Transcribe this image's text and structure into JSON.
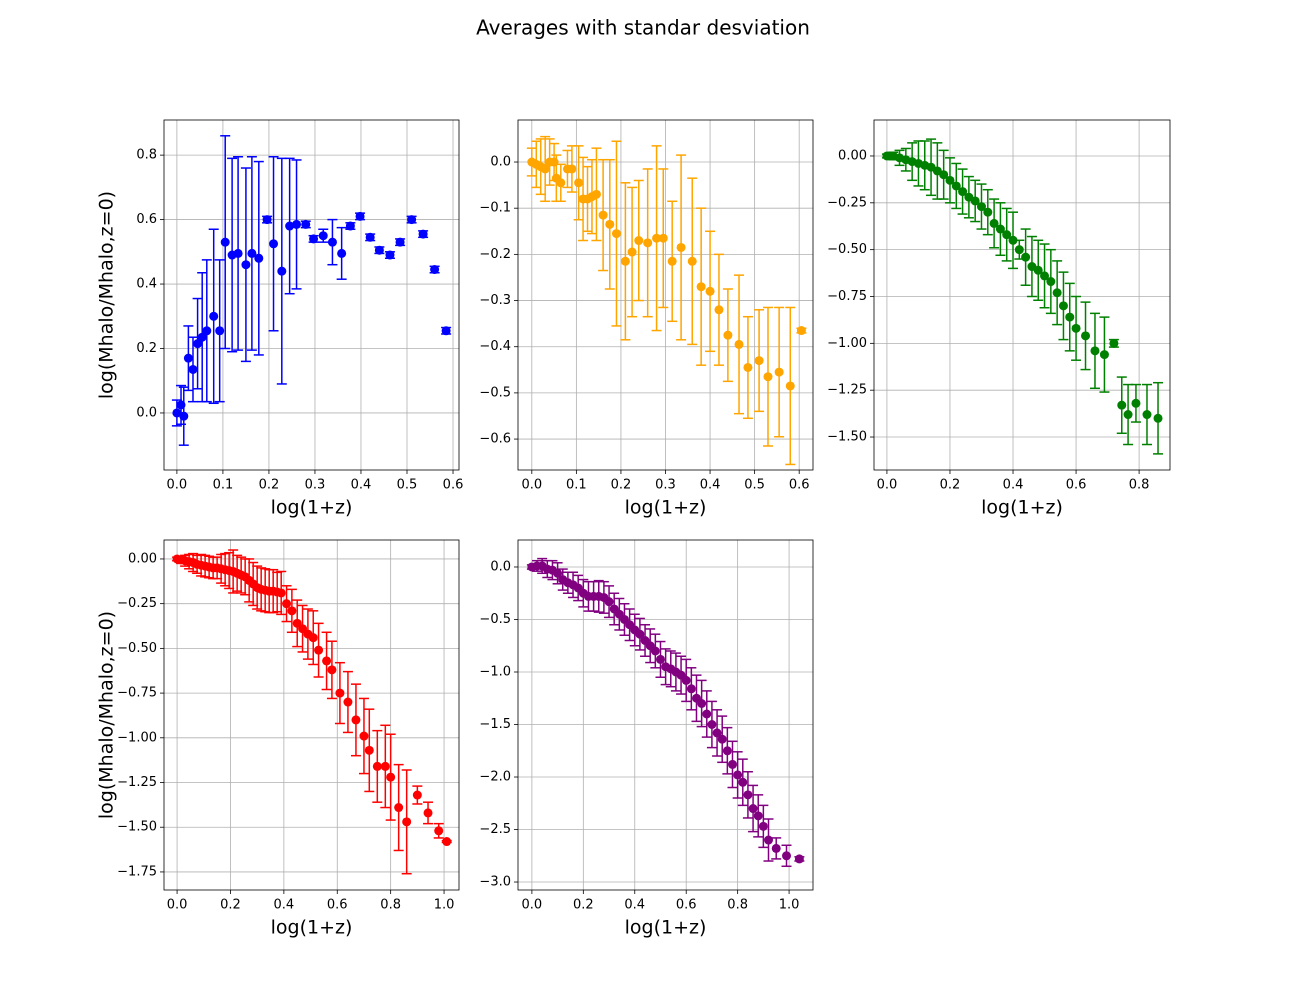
{
  "title": "Averages with standar desviation",
  "chart_data": [
    {
      "type": "errorbar",
      "color": "#0000ff",
      "xlabel": "log(1+z)",
      "ylabel": "log(Mhalo/Mhalo,z=0)",
      "grid": true,
      "xlim": [
        -0.028,
        0.613
      ],
      "ylim": [
        -0.177,
        0.909
      ],
      "xticks": [
        {
          "value": 0,
          "label": "0.0"
        },
        0.1,
        0.2,
        0.3,
        0.4,
        0.5,
        0.6
      ],
      "yticks": [
        {
          "value": 0,
          "label": "0.0"
        },
        0.2,
        0.4,
        0.6,
        0.8
      ],
      "x": [
        0,
        0.009,
        0.015,
        0.025,
        0.035,
        0.045,
        0.055,
        0.065,
        0.08,
        0.093,
        0.105,
        0.12,
        0.133,
        0.15,
        0.163,
        0.178,
        0.196,
        0.21,
        0.228,
        0.245,
        0.26,
        0.28,
        0.297,
        0.318,
        0.338,
        0.358,
        0.377,
        0.398,
        0.42,
        0.44,
        0.463,
        0.485,
        0.51,
        0.535,
        0.56,
        0.585
      ],
      "values": [
        0,
        0.025,
        -0.01,
        0.17,
        0.135,
        0.215,
        0.235,
        0.255,
        0.3,
        0.255,
        0.53,
        0.49,
        0.495,
        0.46,
        0.495,
        0.48,
        0.6,
        0.525,
        0.44,
        0.58,
        0.585,
        0.585,
        0.54,
        0.55,
        0.53,
        0.495,
        0.58,
        0.61,
        0.545,
        0.505,
        0.49,
        0.53,
        0.6,
        0.555,
        0.445,
        0.255
      ],
      "errors": [
        0.04,
        0.06,
        0.09,
        0.1,
        0.1,
        0.14,
        0.2,
        0.22,
        0.27,
        0.22,
        0.33,
        0.3,
        0.3,
        0.3,
        0.3,
        0.3,
        0.01,
        0.27,
        0.35,
        0.21,
        0.2,
        0.01,
        0.01,
        0.02,
        0.07,
        0.08,
        0.01,
        0.01,
        0.01,
        0.01,
        0.01,
        0.01,
        0.01,
        0.01,
        0.01,
        0.01
      ]
    },
    {
      "type": "errorbar",
      "color": "#ffa500",
      "xlabel": "log(1+z)",
      "grid": true,
      "xlim": [
        -0.031,
        0.631
      ],
      "ylim": [
        -0.667,
        0.091
      ],
      "xticks": [
        {
          "value": 0,
          "label": "0.0"
        },
        0.1,
        0.2,
        0.3,
        0.4,
        0.5,
        0.6
      ],
      "yticks": [
        {
          "value": 0,
          "label": "0.0"
        },
        {
          "value": -0.1,
          "label": "−0.1"
        },
        {
          "value": -0.2,
          "label": "−0.2"
        },
        {
          "value": -0.3,
          "label": "−0.3"
        },
        {
          "value": -0.4,
          "label": "−0.4"
        },
        {
          "value": -0.5,
          "label": "−0.5"
        },
        {
          "value": -0.6,
          "label": "−0.6"
        }
      ],
      "x": [
        0,
        0.01,
        0.02,
        0.03,
        0.04,
        0.05,
        0.055,
        0.065,
        0.08,
        0.09,
        0.105,
        0.115,
        0.125,
        0.135,
        0.145,
        0.16,
        0.175,
        0.19,
        0.21,
        0.225,
        0.24,
        0.26,
        0.28,
        0.295,
        0.315,
        0.335,
        0.36,
        0.38,
        0.4,
        0.42,
        0.44,
        0.465,
        0.485,
        0.51,
        0.53,
        0.555,
        0.58,
        0.605
      ],
      "values": [
        0,
        -0.005,
        -0.01,
        -0.015,
        0,
        0,
        -0.035,
        -0.045,
        -0.015,
        -0.015,
        -0.045,
        -0.08,
        -0.08,
        -0.075,
        -0.07,
        -0.115,
        -0.135,
        -0.155,
        -0.215,
        -0.195,
        -0.17,
        -0.175,
        -0.165,
        -0.165,
        -0.215,
        -0.185,
        -0.215,
        -0.27,
        -0.28,
        -0.32,
        -0.375,
        -0.395,
        -0.445,
        -0.43,
        -0.465,
        -0.455,
        -0.485,
        -0.365
      ],
      "errors": [
        0.03,
        0.05,
        0.06,
        0.07,
        0.05,
        0.04,
        0.05,
        0.04,
        0.04,
        0.05,
        0.08,
        0.09,
        0.07,
        0.08,
        0.1,
        0.12,
        0.14,
        0.2,
        0.17,
        0.14,
        0.13,
        0.16,
        0.2,
        0.15,
        0.13,
        0.2,
        0.18,
        0.17,
        0.13,
        0.12,
        0.1,
        0.15,
        0.11,
        0.11,
        0.15,
        0.14,
        0.17,
        0.005
      ]
    },
    {
      "type": "errorbar",
      "color": "#008000",
      "xlabel": "log(1+z)",
      "grid": true,
      "xlim": [
        -0.041,
        0.898
      ],
      "ylim": [
        -1.676,
        0.192
      ],
      "xticks": [
        {
          "value": 0,
          "label": "0.0"
        },
        0.2,
        0.4,
        0.6,
        0.8
      ],
      "yticks": [
        {
          "value": 0,
          "label": "0.00"
        },
        {
          "value": -0.25,
          "label": "−0.25"
        },
        {
          "value": -0.5,
          "label": "−0.50"
        },
        {
          "value": -0.75,
          "label": "−0.75"
        },
        {
          "value": -1,
          "label": "−1.00"
        },
        {
          "value": -1.25,
          "label": "−1.25"
        },
        {
          "value": -1.5,
          "label": "−1.50"
        }
      ],
      "x": [
        0,
        0.02,
        0.04,
        0.06,
        0.08,
        0.1,
        0.12,
        0.14,
        0.16,
        0.18,
        0.2,
        0.22,
        0.24,
        0.26,
        0.28,
        0.3,
        0.32,
        0.34,
        0.36,
        0.38,
        0.4,
        0.42,
        0.44,
        0.46,
        0.48,
        0.5,
        0.52,
        0.54,
        0.56,
        0.58,
        0.6,
        0.63,
        0.66,
        0.69,
        0.72,
        0.745,
        0.765,
        0.79,
        0.825,
        0.86
      ],
      "values": [
        0,
        0,
        -0.01,
        -0.02,
        -0.03,
        -0.04,
        -0.05,
        -0.06,
        -0.08,
        -0.1,
        -0.13,
        -0.16,
        -0.19,
        -0.22,
        -0.24,
        -0.27,
        -0.3,
        -0.36,
        -0.39,
        -0.42,
        -0.45,
        -0.5,
        -0.54,
        -0.59,
        -0.61,
        -0.64,
        -0.67,
        -0.73,
        -0.8,
        -0.86,
        -0.92,
        -0.96,
        -1.04,
        -1.06,
        -1,
        -1.33,
        -1.38,
        -1.32,
        -1.38,
        -1.4
      ],
      "errors": [
        0.01,
        0.02,
        0.04,
        0.06,
        0.1,
        0.12,
        0.13,
        0.15,
        0.15,
        0.13,
        0.12,
        0.12,
        0.12,
        0.11,
        0.11,
        0.12,
        0.12,
        0.13,
        0.14,
        0.14,
        0.15,
        0.05,
        0.15,
        0.16,
        0.16,
        0.17,
        0.17,
        0.17,
        0.18,
        0.18,
        0.17,
        0.18,
        0.2,
        0.2,
        0.02,
        0.15,
        0.16,
        0.1,
        0.16,
        0.19
      ]
    },
    {
      "type": "errorbar",
      "color": "#ff0000",
      "xlabel": "log(1+z)",
      "ylabel": "log(Mhalo/Mhalo,z=0)",
      "grid": true,
      "xlim": [
        -0.049,
        1.056
      ],
      "ylim": [
        -1.851,
        0.106
      ],
      "xticks": [
        {
          "value": 0,
          "label": "0.0"
        },
        0.2,
        0.4,
        0.6,
        0.8,
        {
          "value": 1,
          "label": "1.0"
        }
      ],
      "yticks": [
        {
          "value": 0,
          "label": "0.00"
        },
        {
          "value": -0.25,
          "label": "−0.25"
        },
        {
          "value": -0.5,
          "label": "−0.50"
        },
        {
          "value": -0.75,
          "label": "−0.75"
        },
        {
          "value": -1,
          "label": "−1.00"
        },
        {
          "value": -1.25,
          "label": "−1.25"
        },
        {
          "value": -1.5,
          "label": "−1.50"
        },
        {
          "value": -1.75,
          "label": "−1.75"
        }
      ],
      "x": [
        0,
        0.015,
        0.03,
        0.045,
        0.06,
        0.075,
        0.09,
        0.105,
        0.12,
        0.135,
        0.15,
        0.165,
        0.18,
        0.195,
        0.21,
        0.225,
        0.24,
        0.255,
        0.27,
        0.285,
        0.3,
        0.315,
        0.33,
        0.345,
        0.36,
        0.375,
        0.39,
        0.41,
        0.43,
        0.45,
        0.47,
        0.49,
        0.51,
        0.53,
        0.56,
        0.58,
        0.61,
        0.64,
        0.67,
        0.7,
        0.72,
        0.75,
        0.78,
        0.8,
        0.83,
        0.86,
        0.9,
        0.94,
        0.98,
        1.01
      ],
      "values": [
        0,
        -0.005,
        -0.01,
        -0.015,
        -0.02,
        -0.03,
        -0.035,
        -0.04,
        -0.045,
        -0.05,
        -0.05,
        -0.055,
        -0.06,
        -0.065,
        -0.07,
        -0.08,
        -0.09,
        -0.1,
        -0.12,
        -0.14,
        -0.16,
        -0.17,
        -0.175,
        -0.18,
        -0.18,
        -0.185,
        -0.19,
        -0.25,
        -0.29,
        -0.36,
        -0.39,
        -0.42,
        -0.44,
        -0.51,
        -0.57,
        -0.62,
        -0.75,
        -0.8,
        -0.9,
        -0.99,
        -1.07,
        -1.16,
        -1.16,
        -1.22,
        -1.39,
        -1.47,
        -1.32,
        -1.42,
        -1.52,
        -1.58
      ],
      "errors": [
        0.01,
        0.02,
        0.03,
        0.04,
        0.05,
        0.05,
        0.06,
        0.06,
        0.06,
        0.06,
        0.06,
        0.08,
        0.09,
        0.1,
        0.12,
        0.1,
        0.1,
        0.1,
        0.12,
        0.12,
        0.12,
        0.12,
        0.12,
        0.12,
        0.12,
        0.11,
        0.12,
        0.1,
        0.12,
        0.13,
        0.13,
        0.14,
        0.15,
        0.15,
        0.16,
        0.16,
        0.17,
        0.17,
        0.2,
        0.21,
        0.23,
        0.2,
        0.23,
        0.24,
        0.24,
        0.29,
        0.05,
        0.06,
        0.04,
        0.005
      ]
    },
    {
      "type": "errorbar",
      "color": "#800080",
      "xlabel": "log(1+z)",
      "grid": true,
      "xlim": [
        -0.054,
        1.093
      ],
      "ylim": [
        -3.076,
        0.257
      ],
      "xticks": [
        {
          "value": 0,
          "label": "0.0"
        },
        0.2,
        0.4,
        0.6,
        0.8,
        {
          "value": 1,
          "label": "1.0"
        }
      ],
      "yticks": [
        {
          "value": 0,
          "label": "0.0"
        },
        {
          "value": -0.5,
          "label": "−0.5"
        },
        {
          "value": -1,
          "label": "−1.0"
        },
        {
          "value": -1.5,
          "label": "−1.5"
        },
        {
          "value": -2,
          "label": "−2.0"
        },
        {
          "value": -2.5,
          "label": "−2.5"
        },
        {
          "value": -3,
          "label": "−3.0"
        }
      ],
      "x": [
        0,
        0.02,
        0.04,
        0.06,
        0.08,
        0.1,
        0.12,
        0.14,
        0.16,
        0.18,
        0.2,
        0.22,
        0.24,
        0.26,
        0.28,
        0.3,
        0.32,
        0.34,
        0.36,
        0.38,
        0.4,
        0.42,
        0.44,
        0.46,
        0.48,
        0.5,
        0.52,
        0.54,
        0.56,
        0.58,
        0.6,
        0.62,
        0.64,
        0.66,
        0.68,
        0.7,
        0.72,
        0.74,
        0.76,
        0.78,
        0.8,
        0.82,
        0.84,
        0.86,
        0.88,
        0.9,
        0.92,
        0.95,
        0.99,
        1.04
      ],
      "values": [
        0,
        0.01,
        0.01,
        -0.02,
        -0.03,
        -0.06,
        -0.12,
        -0.15,
        -0.17,
        -0.2,
        -0.25,
        -0.28,
        -0.28,
        -0.28,
        -0.29,
        -0.33,
        -0.4,
        -0.45,
        -0.5,
        -0.55,
        -0.6,
        -0.64,
        -0.7,
        -0.75,
        -0.8,
        -0.88,
        -0.95,
        -0.97,
        -1,
        -1.03,
        -1.08,
        -1.16,
        -1.25,
        -1.3,
        -1.4,
        -1.5,
        -1.58,
        -1.64,
        -1.75,
        -1.88,
        -1.98,
        -2.05,
        -2.17,
        -2.3,
        -2.37,
        -2.47,
        -2.6,
        -2.68,
        -2.75,
        -2.78
      ],
      "errors": [
        0.02,
        0.05,
        0.07,
        0.08,
        0.09,
        0.1,
        0.1,
        0.1,
        0.12,
        0.12,
        0.13,
        0.14,
        0.14,
        0.15,
        0.15,
        0.15,
        0.15,
        0.15,
        0.15,
        0.15,
        0.15,
        0.15,
        0.15,
        0.16,
        0.16,
        0.17,
        0.17,
        0.17,
        0.18,
        0.18,
        0.2,
        0.2,
        0.22,
        0.22,
        0.22,
        0.22,
        0.22,
        0.22,
        0.22,
        0.22,
        0.22,
        0.22,
        0.22,
        0.22,
        0.2,
        0.2,
        0.2,
        0.1,
        0.1,
        0.02
      ]
    }
  ]
}
